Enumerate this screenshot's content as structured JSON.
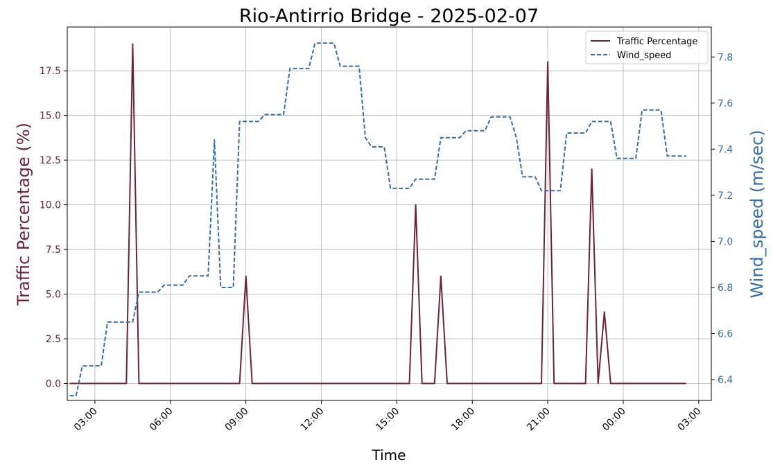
{
  "chart_data": {
    "type": "line",
    "title": "Rio-Antirrio Bridge - 2025-02-07",
    "xlabel": "Time",
    "ylabel_left": "Traffic Percentage (%)",
    "ylabel_right": "Wind_speed (m/sec)",
    "x_ticks": [
      "03:00",
      "06:00",
      "09:00",
      "12:00",
      "15:00",
      "18:00",
      "21:00",
      "00:00",
      "03:00"
    ],
    "x_tick_hours": [
      3,
      6,
      9,
      12,
      15,
      18,
      21,
      24,
      27
    ],
    "xlim_hours": [
      1.9,
      27.5
    ],
    "left_ticks": [
      "0.0",
      "2.5",
      "5.0",
      "7.5",
      "10.0",
      "12.5",
      "15.0",
      "17.5"
    ],
    "left_tick_values": [
      0,
      2.5,
      5,
      7.5,
      10,
      12.5,
      15,
      17.5
    ],
    "ylim_left": [
      -0.95,
      19.95
    ],
    "right_ticks": [
      "6.4",
      "6.6",
      "6.8",
      "7.0",
      "7.2",
      "7.4",
      "7.6",
      "7.8"
    ],
    "right_tick_values": [
      6.4,
      6.6,
      6.8,
      7.0,
      7.2,
      7.4,
      7.6,
      7.8
    ],
    "ylim_right": [
      6.31,
      7.93
    ],
    "grid": true,
    "legend_position": "top-right",
    "colors": {
      "traffic": "#6d213c",
      "wind": "#2f6ea8"
    },
    "series": [
      {
        "name": "Traffic Percentage",
        "axis": "left",
        "style": "solid",
        "color": "#6d213c",
        "x": [
          2.0,
          3.0,
          4.0,
          4.25,
          4.5,
          4.75,
          5.0,
          6.0,
          7.0,
          8.0,
          8.75,
          9.0,
          9.25,
          10.0,
          11.0,
          12.0,
          13.0,
          14.0,
          15.0,
          15.5,
          15.75,
          16.0,
          16.5,
          16.75,
          17.0,
          18.0,
          19.0,
          20.0,
          20.75,
          21.0,
          21.25,
          22.0,
          22.5,
          22.75,
          23.0,
          23.25,
          23.5,
          24.0,
          25.0,
          26.0,
          26.5
        ],
        "y": [
          0,
          0,
          0,
          0,
          19,
          0,
          0,
          0,
          0,
          0,
          0,
          6,
          0,
          0,
          0,
          0,
          0,
          0,
          0,
          0,
          10,
          0,
          0,
          6,
          0,
          0,
          0,
          0,
          0,
          18,
          0,
          0,
          0,
          12,
          0,
          4,
          0,
          0,
          0,
          0,
          0
        ]
      },
      {
        "name": "Wind_speed",
        "axis": "right",
        "style": "dashed",
        "color": "#2f6ea8",
        "x": [
          2.0,
          2.25,
          2.5,
          3.25,
          3.5,
          4.5,
          4.75,
          5.5,
          5.75,
          6.5,
          6.75,
          7.5,
          7.75,
          8.0,
          8.5,
          8.75,
          9.5,
          9.75,
          10.5,
          10.75,
          11.5,
          11.75,
          12.5,
          12.75,
          13.5,
          13.75,
          14.0,
          14.5,
          14.75,
          15.5,
          15.75,
          16.5,
          16.75,
          17.5,
          17.75,
          18.5,
          18.75,
          19.5,
          19.75,
          20.0,
          20.5,
          20.75,
          21.5,
          21.75,
          22.5,
          22.75,
          23.5,
          23.75,
          24.5,
          24.75,
          25.5,
          25.75,
          26.25,
          26.5
        ],
        "y": [
          6.33,
          6.33,
          6.46,
          6.46,
          6.65,
          6.65,
          6.78,
          6.78,
          6.81,
          6.81,
          6.85,
          6.85,
          7.44,
          6.8,
          6.8,
          7.52,
          7.52,
          7.55,
          7.55,
          7.75,
          7.75,
          7.86,
          7.86,
          7.76,
          7.76,
          7.45,
          7.41,
          7.41,
          7.23,
          7.23,
          7.27,
          7.27,
          7.45,
          7.45,
          7.48,
          7.48,
          7.54,
          7.54,
          7.45,
          7.28,
          7.28,
          7.22,
          7.22,
          7.47,
          7.47,
          7.52,
          7.52,
          7.36,
          7.36,
          7.57,
          7.57,
          7.37,
          7.37,
          7.37
        ]
      }
    ]
  }
}
